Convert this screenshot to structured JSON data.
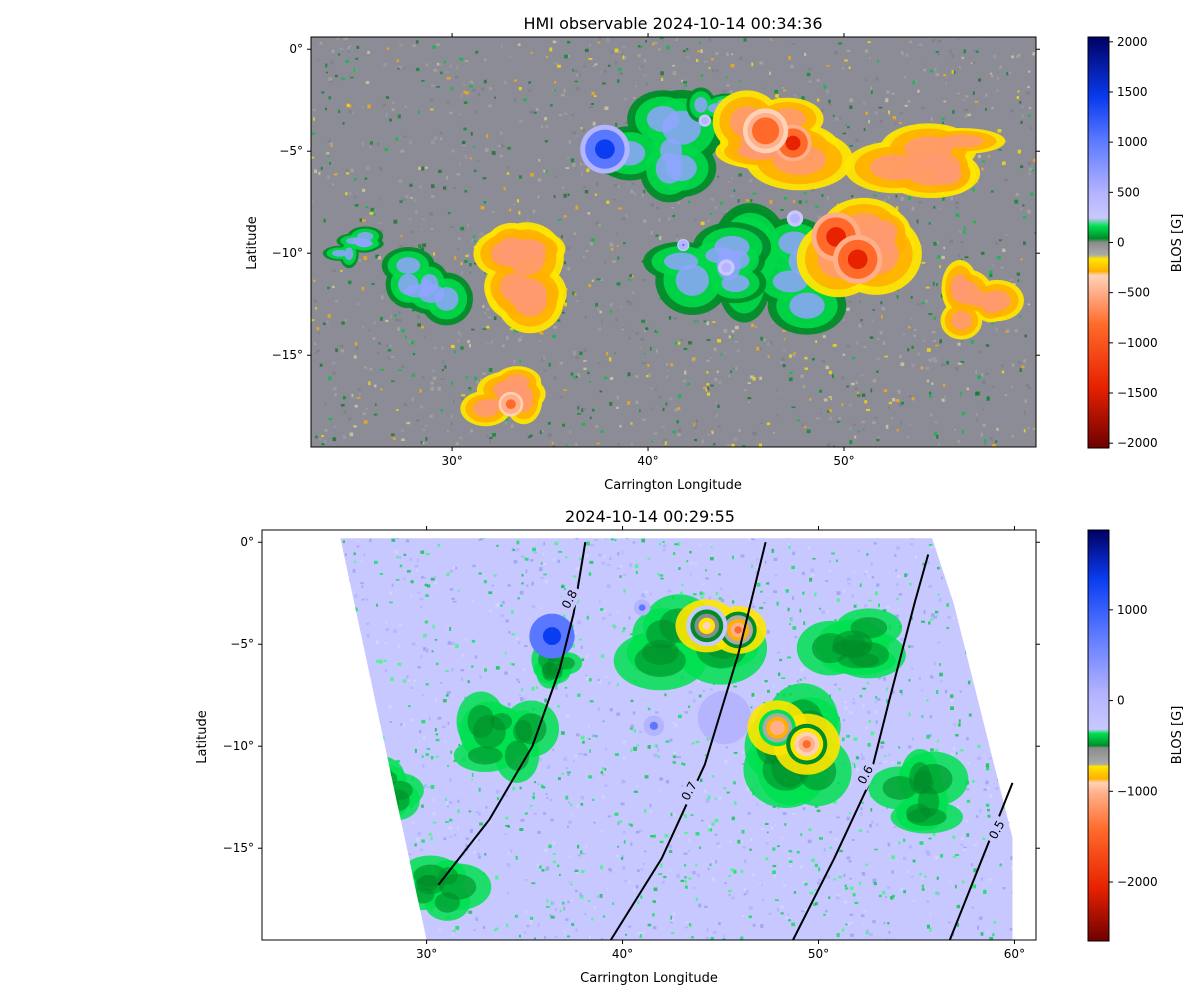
{
  "chart_data": [
    {
      "type": "heatmap",
      "title": "HMI observable 2024-10-14 00:34:36",
      "xlabel": "Carrington Longitude",
      "ylabel": "Latitude",
      "xlim": [
        22.8,
        59.8
      ],
      "ylim": [
        -19.5,
        0.6
      ],
      "xticks": [
        30,
        40,
        50
      ],
      "xtick_labels": [
        "30°",
        "40°",
        "50°"
      ],
      "yticks": [
        0,
        -5,
        -10,
        -15
      ],
      "ytick_labels": [
        "0°",
        "−5°",
        "−10°",
        "−15°"
      ],
      "background_color": "#8c8c96",
      "colorbar": {
        "label": "BLOS [G]",
        "min": -2048,
        "max": 2048,
        "ticks": [
          2000,
          1500,
          1000,
          500,
          0,
          -500,
          -1000,
          -1500,
          -2000
        ],
        "tick_labels": [
          "2000",
          "1500",
          "1000",
          "500",
          "0",
          "−500",
          "−1000",
          "−1500",
          "−2000"
        ],
        "stops": [
          [
            0.0,
            "#6e0000"
          ],
          [
            0.15,
            "#e82200"
          ],
          [
            0.3,
            "#ff6a2a"
          ],
          [
            0.38,
            "#ffb08a"
          ],
          [
            0.42,
            "#ffd2b8"
          ],
          [
            0.43,
            "#ffb000"
          ],
          [
            0.46,
            "#ffe600"
          ],
          [
            0.47,
            "#aaaaaa"
          ],
          [
            0.5,
            "#8c8c8c"
          ],
          [
            0.51,
            "#008c28"
          ],
          [
            0.54,
            "#00e050"
          ],
          [
            0.56,
            "#c8c8ff"
          ],
          [
            0.62,
            "#b4b4ff"
          ],
          [
            0.75,
            "#5a78ff"
          ],
          [
            0.85,
            "#0a3cf0"
          ],
          [
            1.0,
            "#000064"
          ]
        ]
      },
      "features": {
        "positive_spots": [
          {
            "lon": 37.8,
            "lat": -4.9,
            "peak_G": 1500,
            "radius_deg": 1.2
          },
          {
            "lon": 41.8,
            "lat": -9.6,
            "peak_G": 900,
            "radius_deg": 0.3
          },
          {
            "lon": 44.0,
            "lat": -10.7,
            "peak_G": 700,
            "radius_deg": 0.4
          },
          {
            "lon": 47.5,
            "lat": -8.3,
            "peak_G": 700,
            "radius_deg": 0.4
          },
          {
            "lon": 42.9,
            "lat": -3.5,
            "peak_G": 700,
            "radius_deg": 0.3
          }
        ],
        "negative_spots": [
          {
            "lon": 47.4,
            "lat": -4.6,
            "peak_G": -1500,
            "radius_deg": 0.9
          },
          {
            "lon": 46.0,
            "lat": -4.0,
            "peak_G": -1000,
            "radius_deg": 1.1
          },
          {
            "lon": 49.6,
            "lat": -9.2,
            "peak_G": -1400,
            "radius_deg": 1.2
          },
          {
            "lon": 50.7,
            "lat": -10.3,
            "peak_G": -1600,
            "radius_deg": 1.2
          },
          {
            "lon": 33.0,
            "lat": -17.4,
            "peak_G": -900,
            "radius_deg": 0.6
          }
        ],
        "positive_plage": [
          {
            "lon": 40.2,
            "lat": -4.8,
            "rx": 3.5,
            "ry": 2.6
          },
          {
            "lon": 46.5,
            "lat": -11.2,
            "rx": 3.2,
            "ry": 3.2
          },
          {
            "lon": 43.0,
            "lat": -10.5,
            "rx": 2.8,
            "ry": 2.4
          },
          {
            "lon": 28.8,
            "lat": -11.3,
            "rx": 2.0,
            "ry": 1.8
          },
          {
            "lon": 25.0,
            "lat": -9.5,
            "rx": 1.4,
            "ry": 1.0
          },
          {
            "lon": 43.5,
            "lat": -3.2,
            "rx": 1.6,
            "ry": 1.2
          }
        ],
        "negative_plage": [
          {
            "lon": 46.5,
            "lat": -4.3,
            "rx": 3.8,
            "ry": 2.2
          },
          {
            "lon": 51.3,
            "lat": -10.2,
            "rx": 3.2,
            "ry": 2.8
          },
          {
            "lon": 34.0,
            "lat": -11.0,
            "rx": 3.0,
            "ry": 2.4
          },
          {
            "lon": 32.8,
            "lat": -17.0,
            "rx": 2.2,
            "ry": 1.6
          },
          {
            "lon": 54.5,
            "lat": -5.2,
            "rx": 3.5,
            "ry": 1.8
          },
          {
            "lon": 57.0,
            "lat": -12.5,
            "rx": 2.0,
            "ry": 2.0
          }
        ]
      }
    },
    {
      "type": "heatmap",
      "title": "2024-10-14 00:29:55",
      "xlabel": "Carrington Longitude",
      "ylabel": "Latitude",
      "xlim": [
        21.6,
        61.1
      ],
      "ylim": [
        -19.5,
        0.6
      ],
      "xticks": [
        30,
        40,
        50,
        60
      ],
      "xtick_labels": [
        "30°",
        "40°",
        "50°",
        "60°"
      ],
      "yticks": [
        0,
        -5,
        -10,
        -15
      ],
      "ytick_labels": [
        "0°",
        "−5°",
        "−10°",
        "−15°"
      ],
      "data_footprint": [
        [
          25.6,
          0.2
        ],
        [
          55.8,
          0.2
        ],
        [
          56.9,
          -3.0
        ],
        [
          59.9,
          -14.5
        ],
        [
          59.9,
          -19.5
        ],
        [
          30.0,
          -19.5
        ]
      ],
      "footprint_color": "#c6c8ff",
      "colorbar": {
        "label": "BLOS [G]",
        "min": -2650,
        "max": 1880,
        "ticks": [
          1000,
          0,
          -1000,
          -2000
        ],
        "tick_labels": [
          "1000",
          "0",
          "−1000",
          "−2000"
        ],
        "stops": [
          [
            0.0,
            "#6e0000"
          ],
          [
            0.13,
            "#e82200"
          ],
          [
            0.27,
            "#ff6a2a"
          ],
          [
            0.36,
            "#ffb08a"
          ],
          [
            0.385,
            "#ffd2b8"
          ],
          [
            0.395,
            "#ffb000"
          ],
          [
            0.425,
            "#ffe600"
          ],
          [
            0.43,
            "#aaaaaa"
          ],
          [
            0.47,
            "#8c8c8c"
          ],
          [
            0.475,
            "#008c28"
          ],
          [
            0.505,
            "#00e050"
          ],
          [
            0.515,
            "#c8c8ff"
          ],
          [
            0.6,
            "#b4b4ff"
          ],
          [
            0.75,
            "#5a78ff"
          ],
          [
            0.88,
            "#0a3cf0"
          ],
          [
            1.0,
            "#000064"
          ]
        ]
      },
      "contours": [
        {
          "label": "0.8",
          "points": [
            [
              30.6,
              -16.8
            ],
            [
              33.2,
              -13.6
            ],
            [
              35.4,
              -10.0
            ],
            [
              36.8,
              -6.2
            ],
            [
              37.5,
              -3.5
            ],
            [
              38.1,
              0.0
            ]
          ]
        },
        {
          "label": "0.7",
          "points": [
            [
              39.4,
              -19.5
            ],
            [
              42.0,
              -15.5
            ],
            [
              44.2,
              -10.9
            ],
            [
              45.9,
              -5.5
            ],
            [
              47.3,
              0.0
            ]
          ]
        },
        {
          "label": "0.6",
          "points": [
            [
              48.7,
              -19.5
            ],
            [
              50.8,
              -15.5
            ],
            [
              52.5,
              -12.0
            ],
            [
              53.6,
              -7.8
            ],
            [
              54.9,
              -3.0
            ],
            [
              55.6,
              -0.6
            ]
          ]
        },
        {
          "label": "0.5",
          "points": [
            [
              56.7,
              -19.5
            ],
            [
              58.4,
              -15.4
            ],
            [
              59.9,
              -11.8
            ]
          ]
        }
      ],
      "contour_labels": [
        {
          "text": "0.8",
          "lon": 37.3,
          "lat": -2.8
        },
        {
          "text": "0.7",
          "lon": 43.4,
          "lat": -12.2
        },
        {
          "text": "0.6",
          "lon": 52.4,
          "lat": -11.4
        },
        {
          "text": "0.5",
          "lon": 59.1,
          "lat": -14.1
        }
      ],
      "features": {
        "positive_spots": [
          {
            "lon": 36.4,
            "lat": -4.6,
            "peak_G": 1500,
            "radius_deg": 1.1
          },
          {
            "lon": 41.6,
            "lat": -9.0,
            "peak_G": 500,
            "radius_deg": 0.5
          },
          {
            "lon": 45.2,
            "lat": -8.6,
            "peak_G": 400,
            "radius_deg": 1.3
          },
          {
            "lon": 41.0,
            "lat": -3.2,
            "peak_G": 500,
            "radius_deg": 0.4
          }
        ],
        "negative_spots": [
          {
            "lon": 45.9,
            "lat": -4.3,
            "peak_G": -1300,
            "radius_deg": 0.9
          },
          {
            "lon": 44.3,
            "lat": -4.1,
            "peak_G": -900,
            "radius_deg": 1.0
          },
          {
            "lon": 47.9,
            "lat": -9.1,
            "peak_G": -1200,
            "radius_deg": 0.9
          },
          {
            "lon": 49.4,
            "lat": -9.9,
            "peak_G": -1400,
            "radius_deg": 1.0
          }
        ],
        "negative_plage": [
          {
            "lon": 43.6,
            "lat": -4.5,
            "rx": 3.6,
            "ry": 2.4
          },
          {
            "lon": 48.6,
            "lat": -9.9,
            "rx": 2.9,
            "ry": 2.7
          },
          {
            "lon": 36.8,
            "lat": -6.0,
            "rx": 1.6,
            "ry": 1.2
          },
          {
            "lon": 30.6,
            "lat": -16.9,
            "rx": 2.3,
            "ry": 1.6
          },
          {
            "lon": 34.0,
            "lat": -9.8,
            "rx": 2.5,
            "ry": 2.0
          },
          {
            "lon": 52.0,
            "lat": -5.0,
            "rx": 2.6,
            "ry": 1.8
          },
          {
            "lon": 55.0,
            "lat": -12.5,
            "rx": 2.5,
            "ry": 2.0
          },
          {
            "lon": 27.8,
            "lat": -12.0,
            "rx": 1.8,
            "ry": 1.6
          }
        ]
      }
    }
  ]
}
